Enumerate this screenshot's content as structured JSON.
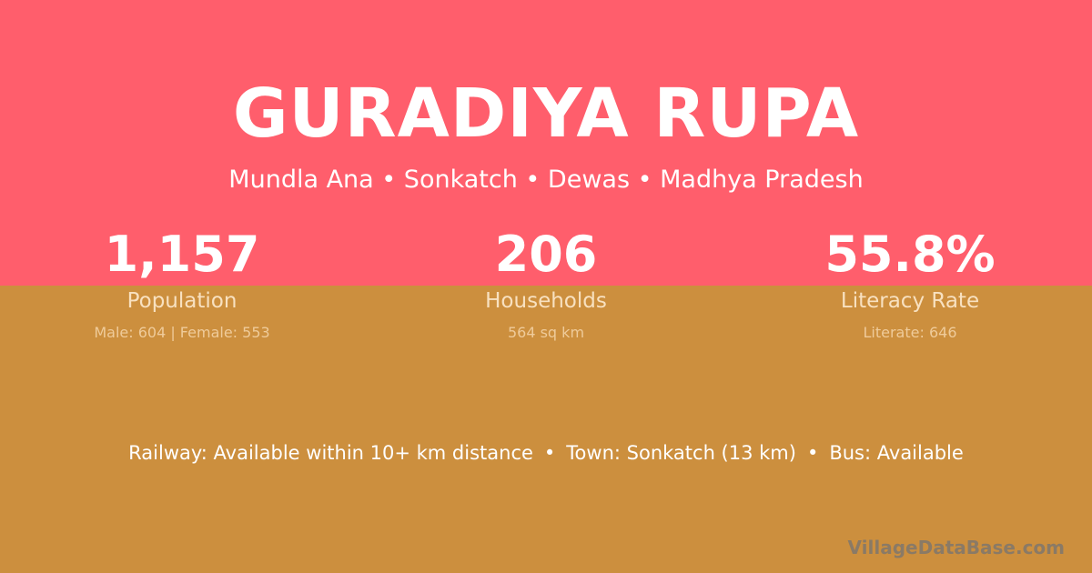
{
  "title": "GURADIYA RUPA",
  "location": "Mundla Ana • Sonkatch • Dewas • Madhya Pradesh",
  "stats": [
    {
      "value": "1,157",
      "label": "Population",
      "detail": "Male: 604 | Female: 553"
    },
    {
      "value": "206",
      "label": "Households",
      "detail": "564 sq km"
    },
    {
      "value": "55.8%",
      "label": "Literacy Rate",
      "detail": "Literate: 646"
    }
  ],
  "connectivity": {
    "railway": "Railway: Available within 10+ km distance",
    "town": "Town: Sonkatch (13 km)",
    "bus": "Bus: Available",
    "separator": "•"
  },
  "brand": "VillageDataBase.com",
  "colors": {
    "top": "#FF5E6C",
    "bottom": "#CC8F3E"
  }
}
